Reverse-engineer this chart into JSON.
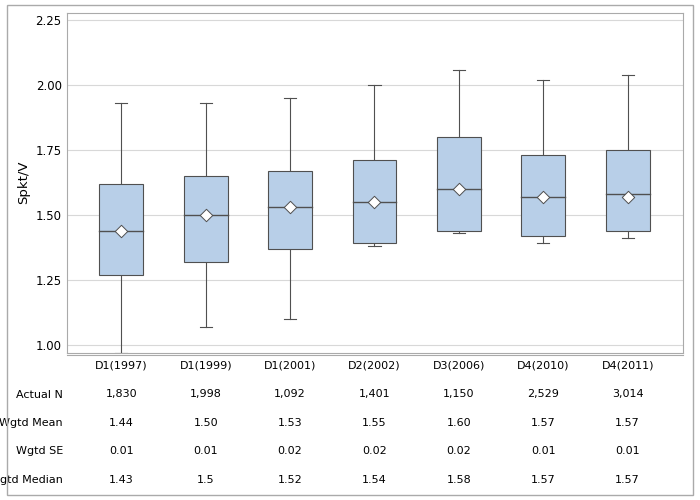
{
  "categories": [
    "D1(1997)",
    "D1(1999)",
    "D1(2001)",
    "D2(2002)",
    "D3(2006)",
    "D4(2010)",
    "D4(2011)"
  ],
  "boxes": [
    {
      "whislo": 0.97,
      "q1": 1.27,
      "med": 1.44,
      "q3": 1.62,
      "whishi": 1.93,
      "mean": 1.44
    },
    {
      "whislo": 1.07,
      "q1": 1.32,
      "med": 1.5,
      "q3": 1.65,
      "whishi": 1.93,
      "mean": 1.5
    },
    {
      "whislo": 1.1,
      "q1": 1.37,
      "med": 1.53,
      "q3": 1.67,
      "whishi": 1.95,
      "mean": 1.53
    },
    {
      "whislo": 1.38,
      "q1": 1.39,
      "med": 1.55,
      "q3": 1.71,
      "whishi": 2.0,
      "mean": 1.55
    },
    {
      "whislo": 1.43,
      "q1": 1.44,
      "med": 1.6,
      "q3": 1.8,
      "whishi": 2.06,
      "mean": 1.6
    },
    {
      "whislo": 1.39,
      "q1": 1.42,
      "med": 1.57,
      "q3": 1.73,
      "whishi": 2.02,
      "mean": 1.57
    },
    {
      "whislo": 1.41,
      "q1": 1.44,
      "med": 1.58,
      "q3": 1.75,
      "whishi": 2.04,
      "mean": 1.57
    }
  ],
  "actual_n": [
    "1,830",
    "1,998",
    "1,092",
    "1,401",
    "1,150",
    "2,529",
    "3,014"
  ],
  "wgtd_mean": [
    "1.44",
    "1.50",
    "1.53",
    "1.55",
    "1.60",
    "1.57",
    "1.57"
  ],
  "wgtd_se": [
    "0.01",
    "0.01",
    "0.02",
    "0.02",
    "0.02",
    "0.01",
    "0.01"
  ],
  "wgtd_median": [
    "1.43",
    "1.5",
    "1.52",
    "1.54",
    "1.58",
    "1.57",
    "1.57"
  ],
  "ylabel": "Spkt/V",
  "ylim": [
    0.97,
    2.28
  ],
  "yticks": [
    1.0,
    1.25,
    1.5,
    1.75,
    2.0,
    2.25
  ],
  "box_color": "#b8cfe8",
  "box_edge_color": "#505050",
  "whisker_color": "#505050",
  "median_color": "#505050",
  "mean_marker_color": "white",
  "mean_marker_edge_color": "#505050",
  "grid_color": "#d8d8d8",
  "background_color": "#ffffff",
  "table_row_labels": [
    "Actual N",
    "Wgtd Mean",
    "Wgtd SE",
    "Wgtd Median"
  ],
  "border_color": "#aaaaaa"
}
